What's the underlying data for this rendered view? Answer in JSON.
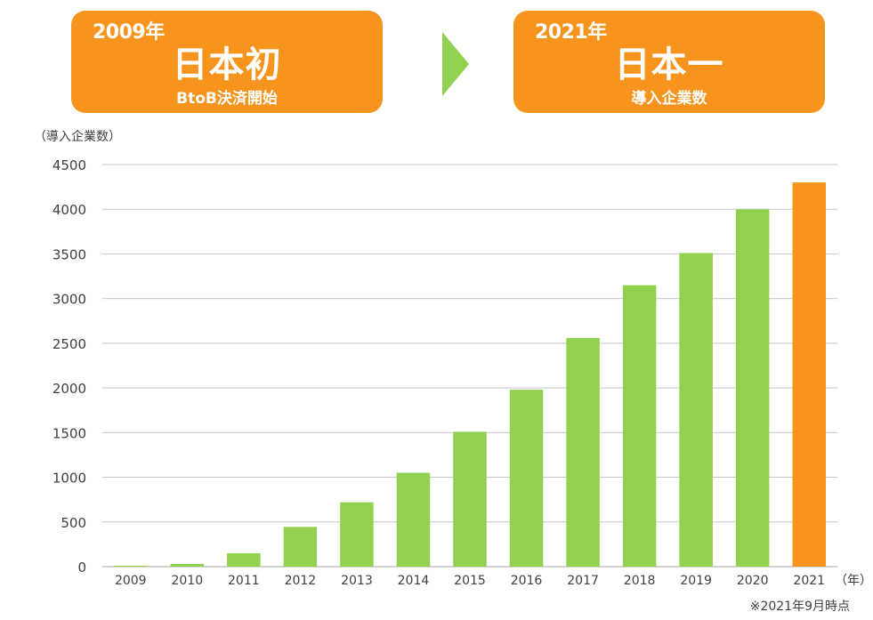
{
  "banners": {
    "left": {
      "year": "2009年",
      "title": "日本初",
      "subtitle": "BtoB決済開始"
    },
    "right": {
      "year": "2021年",
      "title": "日本一",
      "subtitle": "導入企業数"
    }
  },
  "colors": {
    "bar": "#92d050",
    "highlight": "#f7941d",
    "grid": "#c8c8c8",
    "text": "#404040"
  },
  "chart_data": {
    "type": "bar",
    "ylabel": "（導入企業数）",
    "xunit": "（年）",
    "note": "※2021年9月時点",
    "categories": [
      "2009",
      "2010",
      "2011",
      "2012",
      "2013",
      "2014",
      "2015",
      "2016",
      "2017",
      "2018",
      "2019",
      "2020",
      "2021"
    ],
    "values": [
      10,
      30,
      150,
      445,
      720,
      1050,
      1510,
      1980,
      2560,
      3150,
      3510,
      4000,
      4300
    ],
    "highlight_index": 12,
    "ylim": [
      0,
      4500
    ],
    "yticks": [
      0,
      500,
      1000,
      1500,
      2000,
      2500,
      3000,
      3500,
      4000,
      4500
    ],
    "grid": true,
    "legend": "none"
  }
}
